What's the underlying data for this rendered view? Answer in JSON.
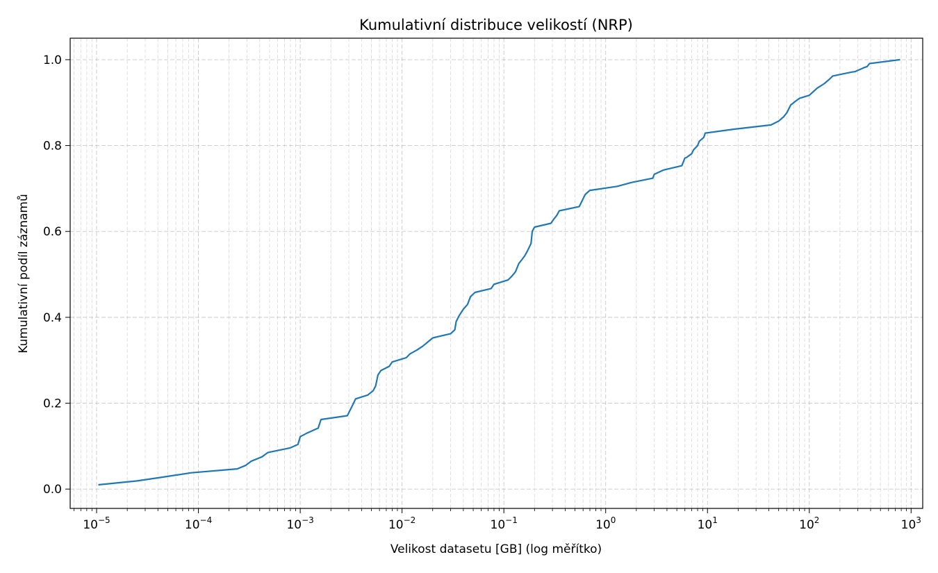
{
  "chart_data": {
    "type": "line",
    "title": "Kumulativní distribuce velikostí (NRP)",
    "xlabel": "Velikost datasetu [GB] (log měřítko)",
    "ylabel": "Kumulativní podíl záznamů",
    "x_scale": "log",
    "xlim": [
      5.5e-06,
      1300
    ],
    "ylim": [
      -0.045,
      1.05
    ],
    "grid": true,
    "grid_style": "dashed",
    "line_color": "#1f77b4",
    "x_ticks": [
      {
        "base": "10",
        "exp": "−5",
        "value": 1e-05
      },
      {
        "base": "10",
        "exp": "−4",
        "value": 0.0001
      },
      {
        "base": "10",
        "exp": "−3",
        "value": 0.001
      },
      {
        "base": "10",
        "exp": "−2",
        "value": 0.01
      },
      {
        "base": "10",
        "exp": "−1",
        "value": 0.1
      },
      {
        "base": "10",
        "exp": "0",
        "value": 1
      },
      {
        "base": "10",
        "exp": "1",
        "value": 10
      },
      {
        "base": "10",
        "exp": "2",
        "value": 100
      },
      {
        "base": "10",
        "exp": "3",
        "value": 1000
      }
    ],
    "y_ticks": [
      {
        "label": "0.0",
        "value": 0.0
      },
      {
        "label": "0.2",
        "value": 0.2
      },
      {
        "label": "0.4",
        "value": 0.4
      },
      {
        "label": "0.6",
        "value": 0.6
      },
      {
        "label": "0.8",
        "value": 0.8
      },
      {
        "label": "1.0",
        "value": 1.0
      }
    ],
    "series": [
      {
        "x": [
          1.04e-05,
          2.5e-05,
          4.5e-05,
          8.5e-05,
          0.00024,
          0.00029,
          0.00033,
          0.00042,
          0.00048,
          0.0008,
          0.00095,
          0.001,
          0.00118,
          0.0015,
          0.0016,
          0.0029,
          0.0032,
          0.0035,
          0.0046,
          0.0052,
          0.0055,
          0.0058,
          0.0062,
          0.0075,
          0.008,
          0.011,
          0.012,
          0.014,
          0.016,
          0.018,
          0.02,
          0.03,
          0.033,
          0.034,
          0.036,
          0.038,
          0.04,
          0.044,
          0.047,
          0.052,
          0.075,
          0.08,
          0.11,
          0.12,
          0.13,
          0.14,
          0.15,
          0.16,
          0.17,
          0.185,
          0.19,
          0.2,
          0.29,
          0.31,
          0.33,
          0.35,
          0.55,
          0.6,
          0.63,
          0.7,
          0.72,
          1.3,
          1.8,
          2.9,
          3.0,
          3.7,
          5.6,
          6.0,
          6.2,
          7.0,
          7.3,
          8.0,
          8.3,
          9.2,
          9.5,
          18.0,
          42.0,
          50.0,
          56.0,
          60.0,
          63.0,
          66.0,
          68.0,
          72.0,
          80.0,
          100.0,
          110.0,
          120.0,
          140.0,
          155.0,
          170.0,
          260.0,
          280.0,
          340.0,
          370.0,
          390.0,
          780.0
        ],
        "y": [
          0.01,
          0.019,
          0.028,
          0.038,
          0.047,
          0.055,
          0.065,
          0.075,
          0.085,
          0.096,
          0.104,
          0.122,
          0.131,
          0.142,
          0.162,
          0.171,
          0.191,
          0.21,
          0.219,
          0.229,
          0.24,
          0.266,
          0.276,
          0.286,
          0.296,
          0.306,
          0.315,
          0.324,
          0.333,
          0.343,
          0.352,
          0.362,
          0.371,
          0.39,
          0.402,
          0.411,
          0.419,
          0.43,
          0.448,
          0.458,
          0.467,
          0.477,
          0.487,
          0.496,
          0.506,
          0.525,
          0.534,
          0.543,
          0.554,
          0.572,
          0.6,
          0.61,
          0.619,
          0.629,
          0.637,
          0.648,
          0.658,
          0.676,
          0.686,
          0.696,
          0.696,
          0.705,
          0.714,
          0.724,
          0.733,
          0.743,
          0.753,
          0.771,
          0.772,
          0.781,
          0.79,
          0.8,
          0.81,
          0.819,
          0.829,
          0.838,
          0.848,
          0.857,
          0.867,
          0.876,
          0.886,
          0.895,
          0.897,
          0.902,
          0.91,
          0.917,
          0.926,
          0.934,
          0.944,
          0.953,
          0.962,
          0.971,
          0.972,
          0.981,
          0.984,
          0.991,
          1.0
        ]
      }
    ]
  }
}
